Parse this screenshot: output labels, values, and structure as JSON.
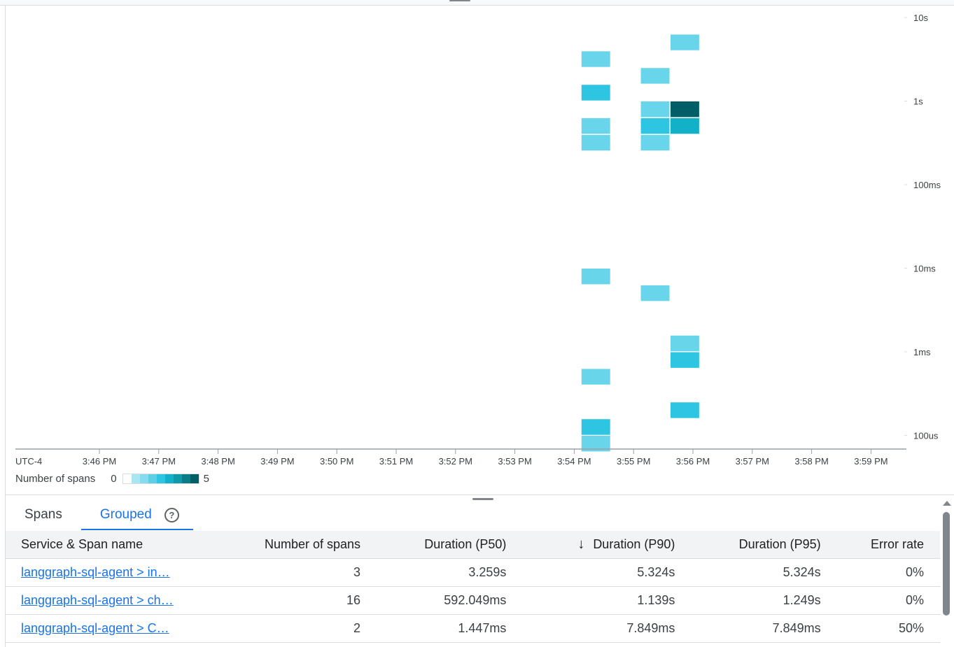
{
  "chart_data": {
    "type": "heatmap",
    "timezone_label": "UTC-4",
    "x_ticks": [
      "3:46 PM",
      "3:47 PM",
      "3:48 PM",
      "3:49 PM",
      "3:50 PM",
      "3:51 PM",
      "3:52 PM",
      "3:53 PM",
      "3:54 PM",
      "3:55 PM",
      "3:56 PM",
      "3:57 PM",
      "3:58 PM",
      "3:59 PM"
    ],
    "y_scale": "log",
    "y_ticks": [
      "10s",
      "1s",
      "100ms",
      "10ms",
      "1ms",
      "100us"
    ],
    "y_tick_values_s": [
      10,
      1,
      0.1,
      0.01,
      0.001,
      0.0001
    ],
    "ylim_s": [
      6e-05,
      16
    ],
    "x_bin_seconds": 30,
    "y_bins_per_decade": 5,
    "grid": false,
    "legend": {
      "title": "Number of spans",
      "min": "0",
      "max": "5",
      "placement": "bottom-left",
      "colors": [
        "#ffffff",
        "#a8e6f2",
        "#86dcee",
        "#5dd0e6",
        "#2dc5e1",
        "#13b1c8",
        "#0f9aa8",
        "#0a7d87",
        "#005f66"
      ]
    },
    "cells": [
      {
        "time": "3:54:07 PM",
        "duration_high_s": 3.98,
        "count": 1
      },
      {
        "time": "3:54:07 PM",
        "duration_high_s": 1.58,
        "count": 2
      },
      {
        "time": "3:54:07 PM",
        "duration_high_s": 0.631,
        "count": 1
      },
      {
        "time": "3:54:07 PM",
        "duration_high_s": 0.398,
        "count": 1
      },
      {
        "time": "3:54:07 PM",
        "duration_high_s": 0.01,
        "count": 1
      },
      {
        "time": "3:54:07 PM",
        "duration_high_s": 0.000631,
        "count": 1
      },
      {
        "time": "3:54:07 PM",
        "duration_high_s": 0.000158,
        "count": 2
      },
      {
        "time": "3:54:07 PM",
        "duration_high_s": 0.0001,
        "count": 1
      },
      {
        "time": "3:55:07 PM",
        "duration_high_s": 2.51,
        "count": 1
      },
      {
        "time": "3:55:07 PM",
        "duration_high_s": 1.0,
        "count": 1
      },
      {
        "time": "3:55:07 PM",
        "duration_high_s": 0.631,
        "count": 2
      },
      {
        "time": "3:55:07 PM",
        "duration_high_s": 0.398,
        "count": 1
      },
      {
        "time": "3:55:07 PM",
        "duration_high_s": 0.00631,
        "count": 1
      },
      {
        "time": "3:55:37 PM",
        "duration_high_s": 6.31,
        "count": 1
      },
      {
        "time": "3:55:37 PM",
        "duration_high_s": 1.0,
        "count": 5
      },
      {
        "time": "3:55:37 PM",
        "duration_high_s": 0.631,
        "count": 3
      },
      {
        "time": "3:55:37 PM",
        "duration_high_s": 0.00158,
        "count": 1
      },
      {
        "time": "3:55:37 PM",
        "duration_high_s": 0.001,
        "count": 2
      },
      {
        "time": "3:55:37 PM",
        "duration_high_s": 0.000251,
        "count": 2
      }
    ]
  },
  "tabs": [
    {
      "label": "Spans"
    },
    {
      "label": "Grouped"
    }
  ],
  "active_tab": "Grouped",
  "table": {
    "sorted_by": "Duration (P90)",
    "columns": [
      "Service & Span name",
      "Number of spans",
      "Duration (P50)",
      "Duration (P90)",
      "Duration (P95)",
      "Error rate"
    ],
    "rows": [
      [
        "langgraph-sql-agent > in…",
        "3",
        "3.259s",
        "5.324s",
        "5.324s",
        "0%"
      ],
      [
        "langgraph-sql-agent > ch…",
        "16",
        "592.049ms",
        "1.139s",
        "1.249s",
        "0%"
      ],
      [
        "langgraph-sql-agent > C…",
        "2",
        "1.447ms",
        "7.849ms",
        "7.849ms",
        "50%"
      ]
    ]
  }
}
